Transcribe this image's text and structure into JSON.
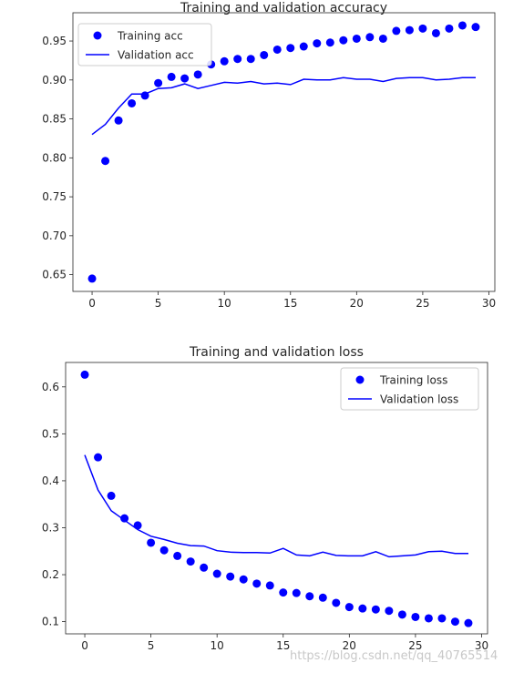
{
  "chart_data": [
    {
      "type": "line",
      "title": "Training and validation accuracy",
      "xlabel": "",
      "ylabel": "",
      "xlim": [
        -1.45,
        30.45
      ],
      "ylim": [
        0.6285,
        0.9863
      ],
      "x_ticks": [
        "0",
        "5",
        "10",
        "15",
        "20",
        "25",
        "30"
      ],
      "y_ticks": [
        "0.65",
        "0.70",
        "0.75",
        "0.80",
        "0.85",
        "0.90",
        "0.95"
      ],
      "legend_position": "upper-left",
      "series": [
        {
          "name": "Training acc",
          "style": "scatter",
          "color": "#0000ff",
          "x": [
            0,
            1,
            2,
            3,
            4,
            5,
            6,
            7,
            8,
            9,
            10,
            11,
            12,
            13,
            14,
            15,
            16,
            17,
            18,
            19,
            20,
            21,
            22,
            23,
            24,
            25,
            26,
            27,
            28,
            29
          ],
          "y": [
            0.645,
            0.796,
            0.848,
            0.87,
            0.88,
            0.896,
            0.904,
            0.902,
            0.907,
            0.92,
            0.924,
            0.927,
            0.927,
            0.932,
            0.939,
            0.941,
            0.943,
            0.947,
            0.948,
            0.951,
            0.953,
            0.955,
            0.953,
            0.963,
            0.964,
            0.966,
            0.96,
            0.966,
            0.97,
            0.968
          ]
        },
        {
          "name": "Validation acc",
          "style": "line",
          "color": "#0000ff",
          "x": [
            0,
            1,
            2,
            3,
            4,
            5,
            6,
            7,
            8,
            9,
            10,
            11,
            12,
            13,
            14,
            15,
            16,
            17,
            18,
            19,
            20,
            21,
            22,
            23,
            24,
            25,
            26,
            27,
            28,
            29
          ],
          "y": [
            0.83,
            0.843,
            0.864,
            0.882,
            0.882,
            0.889,
            0.89,
            0.895,
            0.889,
            0.893,
            0.897,
            0.896,
            0.898,
            0.895,
            0.896,
            0.894,
            0.901,
            0.9,
            0.9,
            0.903,
            0.901,
            0.901,
            0.898,
            0.902,
            0.903,
            0.903,
            0.9,
            0.901,
            0.903,
            0.903
          ]
        }
      ]
    },
    {
      "type": "line",
      "title": "Training and validation loss",
      "xlabel": "",
      "ylabel": "",
      "xlim": [
        -1.45,
        30.45
      ],
      "ylim": [
        0.074,
        0.652
      ],
      "x_ticks": [
        "0",
        "5",
        "10",
        "15",
        "20",
        "25",
        "30"
      ],
      "y_ticks": [
        "0.1",
        "0.2",
        "0.3",
        "0.4",
        "0.5",
        "0.6"
      ],
      "legend_position": "upper-right",
      "series": [
        {
          "name": "Training loss",
          "style": "scatter",
          "color": "#0000ff",
          "x": [
            0,
            1,
            2,
            3,
            4,
            5,
            6,
            7,
            8,
            9,
            10,
            11,
            12,
            13,
            14,
            15,
            16,
            17,
            18,
            19,
            20,
            21,
            22,
            23,
            24,
            25,
            26,
            27,
            28,
            29
          ],
          "y": [
            0.626,
            0.45,
            0.368,
            0.32,
            0.305,
            0.268,
            0.252,
            0.24,
            0.228,
            0.215,
            0.202,
            0.196,
            0.19,
            0.181,
            0.177,
            0.162,
            0.161,
            0.154,
            0.151,
            0.14,
            0.131,
            0.128,
            0.126,
            0.123,
            0.115,
            0.11,
            0.107,
            0.107,
            0.1,
            0.097
          ]
        },
        {
          "name": "Validation loss",
          "style": "line",
          "color": "#0000ff",
          "x": [
            0,
            1,
            2,
            3,
            4,
            5,
            6,
            7,
            8,
            9,
            10,
            11,
            12,
            13,
            14,
            15,
            16,
            17,
            18,
            19,
            20,
            21,
            22,
            23,
            24,
            25,
            26,
            27,
            28,
            29
          ],
          "y": [
            0.455,
            0.38,
            0.336,
            0.316,
            0.296,
            0.282,
            0.275,
            0.267,
            0.262,
            0.261,
            0.251,
            0.248,
            0.247,
            0.247,
            0.246,
            0.256,
            0.242,
            0.24,
            0.248,
            0.241,
            0.24,
            0.24,
            0.249,
            0.238,
            0.24,
            0.242,
            0.249,
            0.25,
            0.245,
            0.245
          ]
        }
      ]
    }
  ],
  "watermark": "https://blog.csdn.net/qq_40765514"
}
